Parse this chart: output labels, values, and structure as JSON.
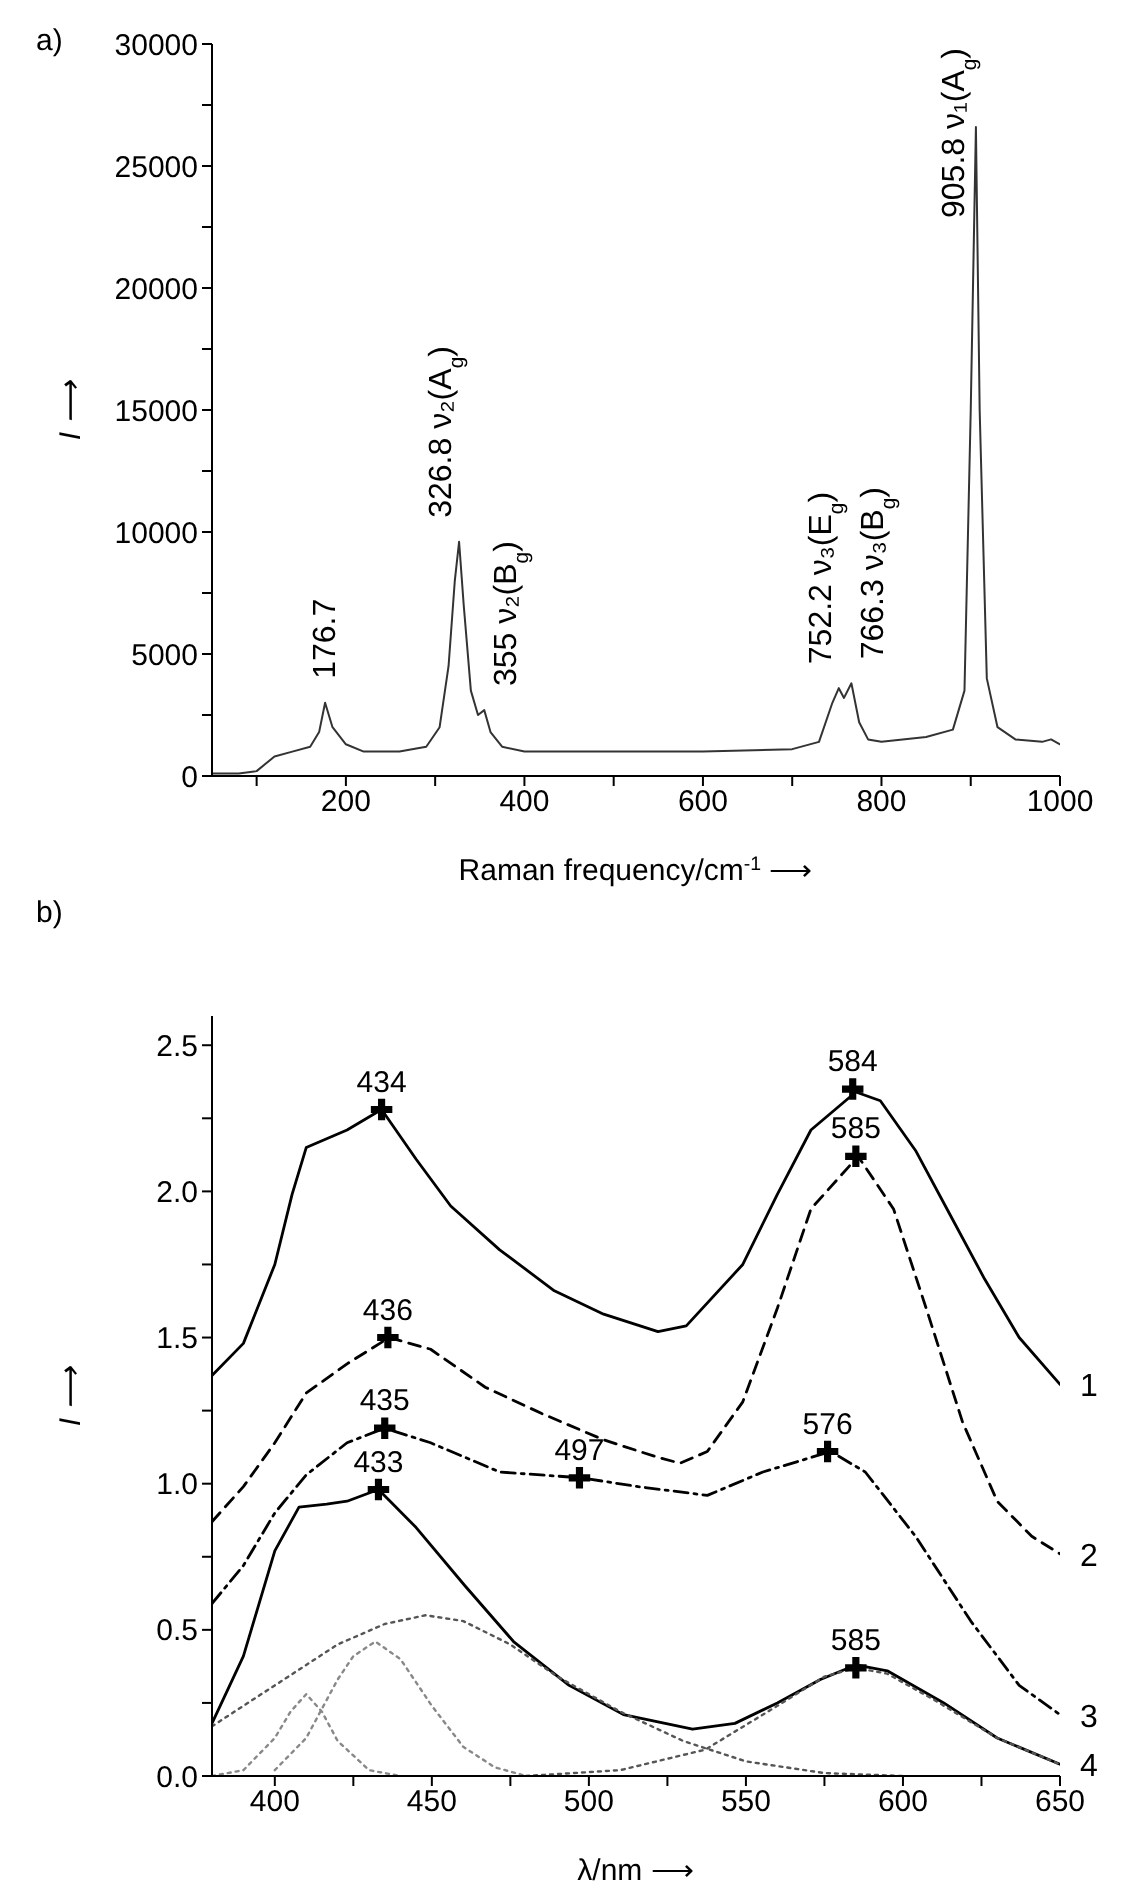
{
  "chart_data": [
    {
      "type": "line",
      "title": "a)",
      "xlabel": "Raman frequency/cm$^{-1}$ ⟶",
      "ylabel": "I ⟶",
      "xlim": [
        50,
        1000
      ],
      "ylim": [
        0,
        30000
      ],
      "xticks": [
        {
          "value": 100,
          "label": null
        },
        200,
        {
          "value": 300,
          "label": null
        },
        400,
        {
          "value": 500,
          "label": null
        },
        600,
        {
          "value": 700,
          "label": null
        },
        800,
        {
          "value": 900,
          "label": null
        },
        1000
      ],
      "yticks": [
        0,
        {
          "value": 2500,
          "label": null
        },
        5000,
        {
          "value": 7500,
          "label": null
        },
        10000,
        {
          "value": 12500,
          "label": null
        },
        15000,
        {
          "value": 17500,
          "label": null
        },
        20000,
        {
          "value": 22500,
          "label": null
        },
        25000,
        {
          "value": 27500,
          "label": null
        },
        30000
      ],
      "series": [
        {
          "color": "#333333",
          "line_style": "solid",
          "x": [
            50,
            80,
            100,
            110,
            120,
            140,
            160,
            170,
            176.7,
            185,
            200,
            220,
            260,
            290,
            305,
            315,
            322,
            326.8,
            332,
            340,
            348,
            355,
            362,
            375,
            400,
            500,
            600,
            700,
            730,
            745,
            752.2,
            758,
            766.3,
            775,
            785,
            800,
            850,
            880,
            893,
            900,
            905.8,
            910,
            918,
            930,
            950,
            980,
            990,
            1000
          ],
          "values": [
            100,
            100,
            200,
            500,
            800,
            1000,
            1200,
            1800,
            3000,
            2000,
            1300,
            1000,
            1000,
            1200,
            2000,
            4500,
            8000,
            9600,
            7000,
            3500,
            2500,
            2700,
            1800,
            1200,
            1000,
            1000,
            1000,
            1100,
            1400,
            3000,
            3600,
            3200,
            3800,
            2200,
            1500,
            1400,
            1600,
            1900,
            3500,
            15000,
            26600,
            15000,
            4000,
            2000,
            1500,
            1400,
            1500,
            1300
          ]
        }
      ],
      "annotations": [
        {
          "text": "176.7",
          "x": 176.7,
          "y": 3000
        },
        {
          "text": "326.8  ν₂(A$_{g}$)",
          "x": 326.8,
          "y": 9600
        },
        {
          "text": "355  ν₂(B$_{g}$)",
          "x": 355,
          "y": 2700
        },
        {
          "text": "752.2  ν₃(E$_{g}$)",
          "x": 752.2,
          "y": 3600
        },
        {
          "text": "766.3  ν₃(B$_{g}$)",
          "x": 766.3,
          "y": 3800
        },
        {
          "text": "905.8  ν₁(A$_{g}$)",
          "x": 905.8,
          "y": 26600
        }
      ]
    },
    {
      "type": "line",
      "title": "b)",
      "xlabel": "λ/nm ⟶",
      "ylabel": "I ⟶",
      "xlim": [
        380,
        650
      ],
      "ylim": [
        0,
        2.6
      ],
      "xticks": [
        400,
        {
          "value": 425,
          "label": null
        },
        450,
        {
          "value": 475,
          "label": null
        },
        500,
        {
          "value": 525,
          "label": null
        },
        550,
        {
          "value": 575,
          "label": null
        },
        600,
        {
          "value": 625,
          "label": null
        },
        650
      ],
      "yticks": [
        "0.0",
        {
          "value": 0.25,
          "label": null
        },
        {
          "value": 0.5,
          "label": "0.5"
        },
        {
          "value": 0.75,
          "label": null
        },
        {
          "value": 1,
          "label": "1.0"
        },
        {
          "value": 1.25,
          "label": null
        },
        {
          "value": 1.5,
          "label": "1.5"
        },
        {
          "value": 1.75,
          "label": null
        },
        {
          "value": 2,
          "label": "2.0"
        },
        {
          "value": 2.25,
          "label": null
        },
        {
          "value": 2.5,
          "label": "2.5"
        }
      ],
      "series": [
        {
          "name": "1",
          "color": "#000000",
          "line_style": "solid",
          "x": [
            380,
            390,
            400,
            405.5,
            410,
            416.5,
            423,
            434,
            445,
            456,
            471.6,
            489,
            504.7,
            522,
            531,
            549,
            560,
            570.7,
            585,
            592.8,
            604,
            615,
            626,
            637,
            650
          ],
          "values": [
            1.37,
            1.48,
            1.75,
            1.99,
            2.15,
            2.18,
            2.21,
            2.28,
            2.11,
            1.95,
            1.8,
            1.66,
            1.58,
            1.52,
            1.54,
            1.75,
            1.99,
            2.21,
            2.34,
            2.31,
            2.14,
            1.92,
            1.7,
            1.5,
            1.34
          ]
        },
        {
          "name": "2",
          "color": "#000000",
          "line_style": "dashed",
          "x": [
            380,
            390,
            400,
            410,
            423,
            436.4,
            449.6,
            467,
            485,
            504.7,
            522,
            529,
            537.7,
            549,
            560,
            570.7,
            585.7,
            597,
            608,
            619,
            630,
            641,
            650
          ],
          "values": [
            0.87,
            0.99,
            1.14,
            1.31,
            1.41,
            1.5,
            1.46,
            1.33,
            1.24,
            1.15,
            1.09,
            1.07,
            1.11,
            1.28,
            1.6,
            1.94,
            2.12,
            1.94,
            1.58,
            1.21,
            0.94,
            0.82,
            0.76
          ]
        },
        {
          "name": "3",
          "color": "#000000",
          "line_style": "dashdot",
          "x": [
            380,
            390,
            400,
            410,
            423,
            435,
            449.6,
            471.6,
            497.6,
            515.7,
            537.7,
            555.4,
            577,
            588,
            604,
            621.6,
            637,
            650
          ],
          "values": [
            0.59,
            0.72,
            0.9,
            1.03,
            1.14,
            1.19,
            1.14,
            1.04,
            1.02,
            0.99,
            0.96,
            1.04,
            1.11,
            1.04,
            0.82,
            0.53,
            0.31,
            0.21
          ]
        },
        {
          "name": "4",
          "color": "#000000",
          "line_style": "solid",
          "x": [
            380,
            390,
            400,
            407.7,
            416.5,
            423,
            433,
            445,
            460.6,
            476,
            493.7,
            511,
            533,
            546.5,
            560,
            573.7,
            585,
            595,
            613,
            630,
            650
          ],
          "values": [
            0.18,
            0.41,
            0.77,
            0.92,
            0.93,
            0.94,
            0.98,
            0.85,
            0.65,
            0.46,
            0.31,
            0.21,
            0.16,
            0.18,
            0.25,
            0.33,
            0.38,
            0.36,
            0.25,
            0.13,
            0.04
          ]
        },
        {
          "color": "#888888",
          "line_style": "dotted",
          "x": [
            380,
            390,
            400,
            405,
            410,
            415,
            420,
            430,
            440
          ],
          "values": [
            0,
            0.02,
            0.13,
            0.22,
            0.28,
            0.22,
            0.12,
            0.02,
            0
          ]
        },
        {
          "color": "#888888",
          "line_style": "dotted",
          "x": [
            400,
            410,
            420,
            425,
            432,
            440,
            450,
            460,
            470,
            480
          ],
          "values": [
            0.02,
            0.13,
            0.33,
            0.41,
            0.46,
            0.4,
            0.24,
            0.1,
            0.03,
            0
          ]
        },
        {
          "color": "#555555",
          "line_style": "dotted",
          "x": [
            380,
            400,
            420,
            435,
            448,
            460,
            475,
            490,
            510,
            530,
            550,
            575,
            600
          ],
          "values": [
            0.17,
            0.31,
            0.45,
            0.52,
            0.55,
            0.53,
            0.45,
            0.34,
            0.22,
            0.12,
            0.05,
            0.01,
            0
          ]
        },
        {
          "color": "#555555",
          "line_style": "dotted",
          "x": [
            480,
            510,
            537,
            560,
            575,
            585,
            595,
            610,
            630,
            650
          ],
          "values": [
            0,
            0.02,
            0.09,
            0.24,
            0.34,
            0.37,
            0.35,
            0.26,
            0.13,
            0.04
          ]
        },
        {
          "type": "scatter",
          "color": "#000000",
          "marker": "cross",
          "x": [
            434,
            584,
            436,
            585,
            435,
            497,
            576,
            433,
            585
          ],
          "values": [
            2.28,
            2.35,
            1.5,
            2.12,
            1.19,
            1.02,
            1.11,
            0.98,
            0.37
          ]
        }
      ],
      "annotations": [
        {
          "text": "434",
          "x": 434,
          "y": 2.28
        },
        {
          "text": "584",
          "x": 584,
          "y": 2.35
        },
        {
          "text": "436",
          "x": 436,
          "y": 1.5
        },
        {
          "text": "585",
          "x": 585,
          "y": 2.12
        },
        {
          "text": "435",
          "x": 435,
          "y": 1.19
        },
        {
          "text": "497",
          "x": 497,
          "y": 1.02
        },
        {
          "text": "576",
          "x": 576,
          "y": 1.11
        },
        {
          "text": "433",
          "x": 433,
          "y": 0.98
        },
        {
          "text": "585",
          "x": 585,
          "y": 0.37
        }
      ]
    }
  ]
}
